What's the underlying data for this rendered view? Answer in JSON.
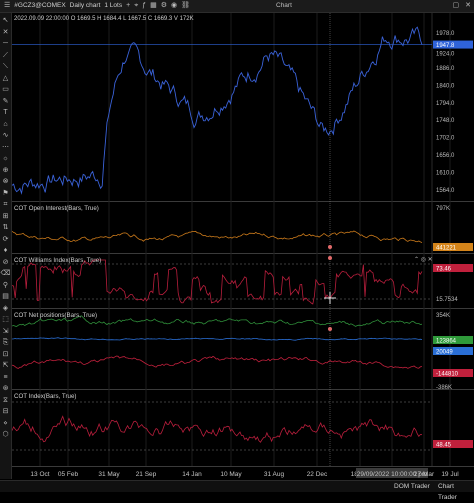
{
  "top_bar": {
    "symbol": "#GCZ3@COMEX",
    "timeframe": "Daily chart",
    "lots": "1 Lots",
    "window_title": "Chart"
  },
  "ohlc_line": "2022.09.09 22:00:00 O 1669.5 H 1684.4 L 1667.5 C 1669.3 V 172K",
  "panes": [
    {
      "id": "price",
      "label": "",
      "color": "#3a62d8",
      "axis": [
        "1978.0",
        "1924.0",
        "1886.0",
        "1840.0",
        "1794.0",
        "1748.0",
        "1702.0",
        "1656.0",
        "1610.0",
        "1564.0"
      ],
      "badge": "1947.8",
      "badge2": "1932.0",
      "badge_color": "#2f63d9"
    },
    {
      "id": "oi",
      "label": "COT Open Interest(Bars, True)",
      "color": "#c8781a",
      "axis": [
        "797K"
      ],
      "badge": "441221",
      "badge_color": "#d4841a"
    },
    {
      "id": "williams",
      "label": "COT Williams Index(Bars, True)",
      "color": "#b81e3c",
      "axis": [
        "15.7534"
      ],
      "badge": "73.46",
      "badge_color": "#c0203c"
    },
    {
      "id": "net",
      "label": "COT Net positions(Bars, True)",
      "color": "#2f8f3a",
      "axis": [
        "354K"
      ],
      "badge": "123864",
      "badge_color": "#2f9a3a",
      "badge2": "20049",
      "badge2_color": "#2a6fd6",
      "badge3": "-144810",
      "badge3_color": "#c0203c",
      "axis2": [
        "-386K"
      ]
    },
    {
      "id": "cotidx",
      "label": "COT Index(Bars, True)",
      "color": "#b81e3c",
      "axis": [],
      "badge": "48.45",
      "badge_color": "#c0203c"
    }
  ],
  "x_axis": {
    "dates": [
      "13 Oct",
      "05 Feb",
      "31 May",
      "21 Sep",
      "14 Jan",
      "10 May",
      "31 Aug",
      "22 Dec",
      "18 Apr",
      "29/09/2022 10:00:00 pm",
      "27 Mar",
      "19 Jul"
    ],
    "highlight_index": 9
  },
  "bottom_bar": {
    "dom_trader": "DOM Trader",
    "chart_trader": "Chart Trader"
  },
  "colors": {
    "price": "#3a62d8",
    "open_interest": "#c8781a",
    "williams": "#b81e3c",
    "net_green": "#2f8f3a",
    "net_blue": "#2a6fd6",
    "net_red": "#c0203c"
  }
}
